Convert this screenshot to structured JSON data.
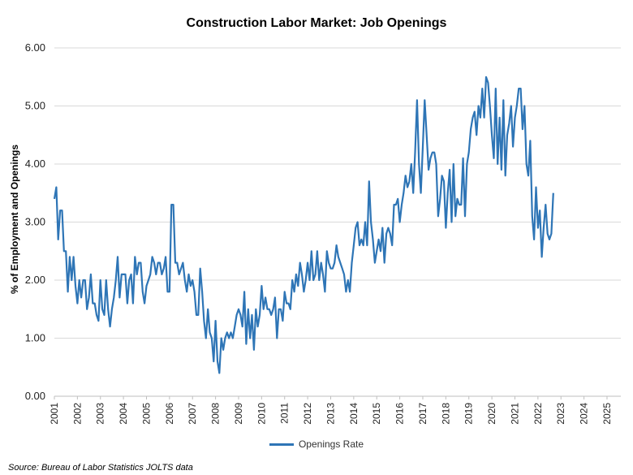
{
  "chart_data": {
    "type": "line",
    "title": "Construction Labor Market: Job Openings",
    "ylabel": "% of Employment and Openings",
    "xlabel": "",
    "ylim": [
      0,
      6
    ],
    "yticks": [
      "0.00",
      "1.00",
      "2.00",
      "3.00",
      "4.00",
      "5.00",
      "6.00"
    ],
    "xlim": [
      2001,
      2025.6
    ],
    "xticks": [
      "2001",
      "2002",
      "2003",
      "2004",
      "2005",
      "2006",
      "2007",
      "2008",
      "2009",
      "2010",
      "2011",
      "2012",
      "2013",
      "2014",
      "2015",
      "2016",
      "2017",
      "2018",
      "2019",
      "2020",
      "2021",
      "2022",
      "2023",
      "2024",
      "2025"
    ],
    "grid": "horizontal",
    "legend_position": "bottom",
    "series": [
      {
        "name": "Openings Rate",
        "color": "#2E75B6",
        "start": "2001-01",
        "frequency": "monthly",
        "values": [
          3.4,
          3.6,
          2.7,
          3.2,
          3.2,
          2.5,
          2.5,
          1.8,
          2.4,
          2.0,
          2.4,
          1.9,
          1.6,
          2.0,
          1.7,
          2.0,
          2.0,
          1.5,
          1.7,
          2.1,
          1.6,
          1.6,
          1.4,
          1.3,
          2.0,
          1.5,
          1.4,
          2.0,
          1.5,
          1.2,
          1.5,
          1.7,
          2.0,
          2.4,
          1.7,
          2.1,
          2.1,
          2.1,
          1.6,
          2.0,
          2.1,
          1.6,
          2.4,
          2.1,
          2.3,
          2.3,
          1.8,
          1.6,
          1.9,
          2.0,
          2.1,
          2.4,
          2.3,
          2.1,
          2.3,
          2.3,
          2.1,
          2.2,
          2.4,
          1.8,
          1.8,
          3.3,
          3.3,
          2.3,
          2.3,
          2.1,
          2.2,
          2.3,
          2.0,
          1.8,
          2.1,
          1.9,
          2.0,
          1.8,
          1.4,
          1.4,
          2.2,
          1.8,
          1.3,
          1.0,
          1.5,
          1.1,
          1.0,
          0.6,
          1.3,
          0.6,
          0.4,
          1.0,
          0.8,
          1.0,
          1.1,
          1.0,
          1.1,
          1.0,
          1.2,
          1.4,
          1.5,
          1.4,
          1.2,
          1.8,
          0.9,
          1.5,
          1.0,
          1.4,
          0.8,
          1.5,
          1.2,
          1.4,
          1.9,
          1.5,
          1.7,
          1.5,
          1.5,
          1.4,
          1.5,
          1.7,
          1.0,
          1.5,
          1.5,
          1.3,
          1.8,
          1.6,
          1.6,
          1.5,
          2.0,
          1.8,
          2.1,
          1.9,
          2.3,
          2.1,
          1.8,
          2.0,
          2.3,
          2.0,
          2.5,
          2.0,
          2.1,
          2.5,
          2.0,
          2.3,
          2.1,
          1.8,
          2.5,
          2.3,
          2.2,
          2.2,
          2.3,
          2.6,
          2.4,
          2.3,
          2.2,
          2.1,
          1.8,
          2.0,
          1.8,
          2.3,
          2.6,
          2.9,
          3.0,
          2.6,
          2.7,
          2.6,
          3.0,
          2.6,
          3.7,
          3.0,
          2.7,
          2.3,
          2.5,
          2.7,
          2.5,
          2.9,
          2.3,
          2.8,
          2.9,
          2.8,
          2.6,
          3.3,
          3.3,
          3.4,
          3.0,
          3.3,
          3.5,
          3.8,
          3.6,
          3.7,
          4.0,
          3.5,
          4.2,
          5.1,
          4.0,
          3.5,
          4.3,
          5.1,
          4.5,
          3.9,
          4.1,
          4.2,
          4.2,
          4.0,
          3.1,
          3.4,
          3.8,
          3.7,
          2.9,
          3.5,
          3.9,
          3.0,
          4.0,
          3.1,
          3.4,
          3.3,
          3.3,
          4.1,
          3.1,
          4.0,
          4.2,
          4.6,
          4.8,
          4.9,
          4.5,
          5.0,
          4.8,
          5.3,
          4.8,
          5.5,
          5.4,
          5.0,
          4.5,
          4.1,
          5.3,
          4.0,
          4.8,
          3.9,
          5.1,
          3.8,
          4.5,
          4.7,
          5.0,
          4.3,
          4.8,
          5.0,
          5.3,
          5.3,
          4.6,
          5.0,
          4.0,
          3.8,
          4.4,
          3.1,
          2.7,
          3.6,
          2.9,
          3.2,
          2.4,
          2.9,
          3.3,
          2.8,
          2.7,
          2.8,
          3.5
        ]
      }
    ],
    "legend": [
      {
        "label": "Openings Rate",
        "color": "#2E75B6"
      }
    ],
    "source": "Source: Bureau of Labor Statistics JOLTS data"
  }
}
